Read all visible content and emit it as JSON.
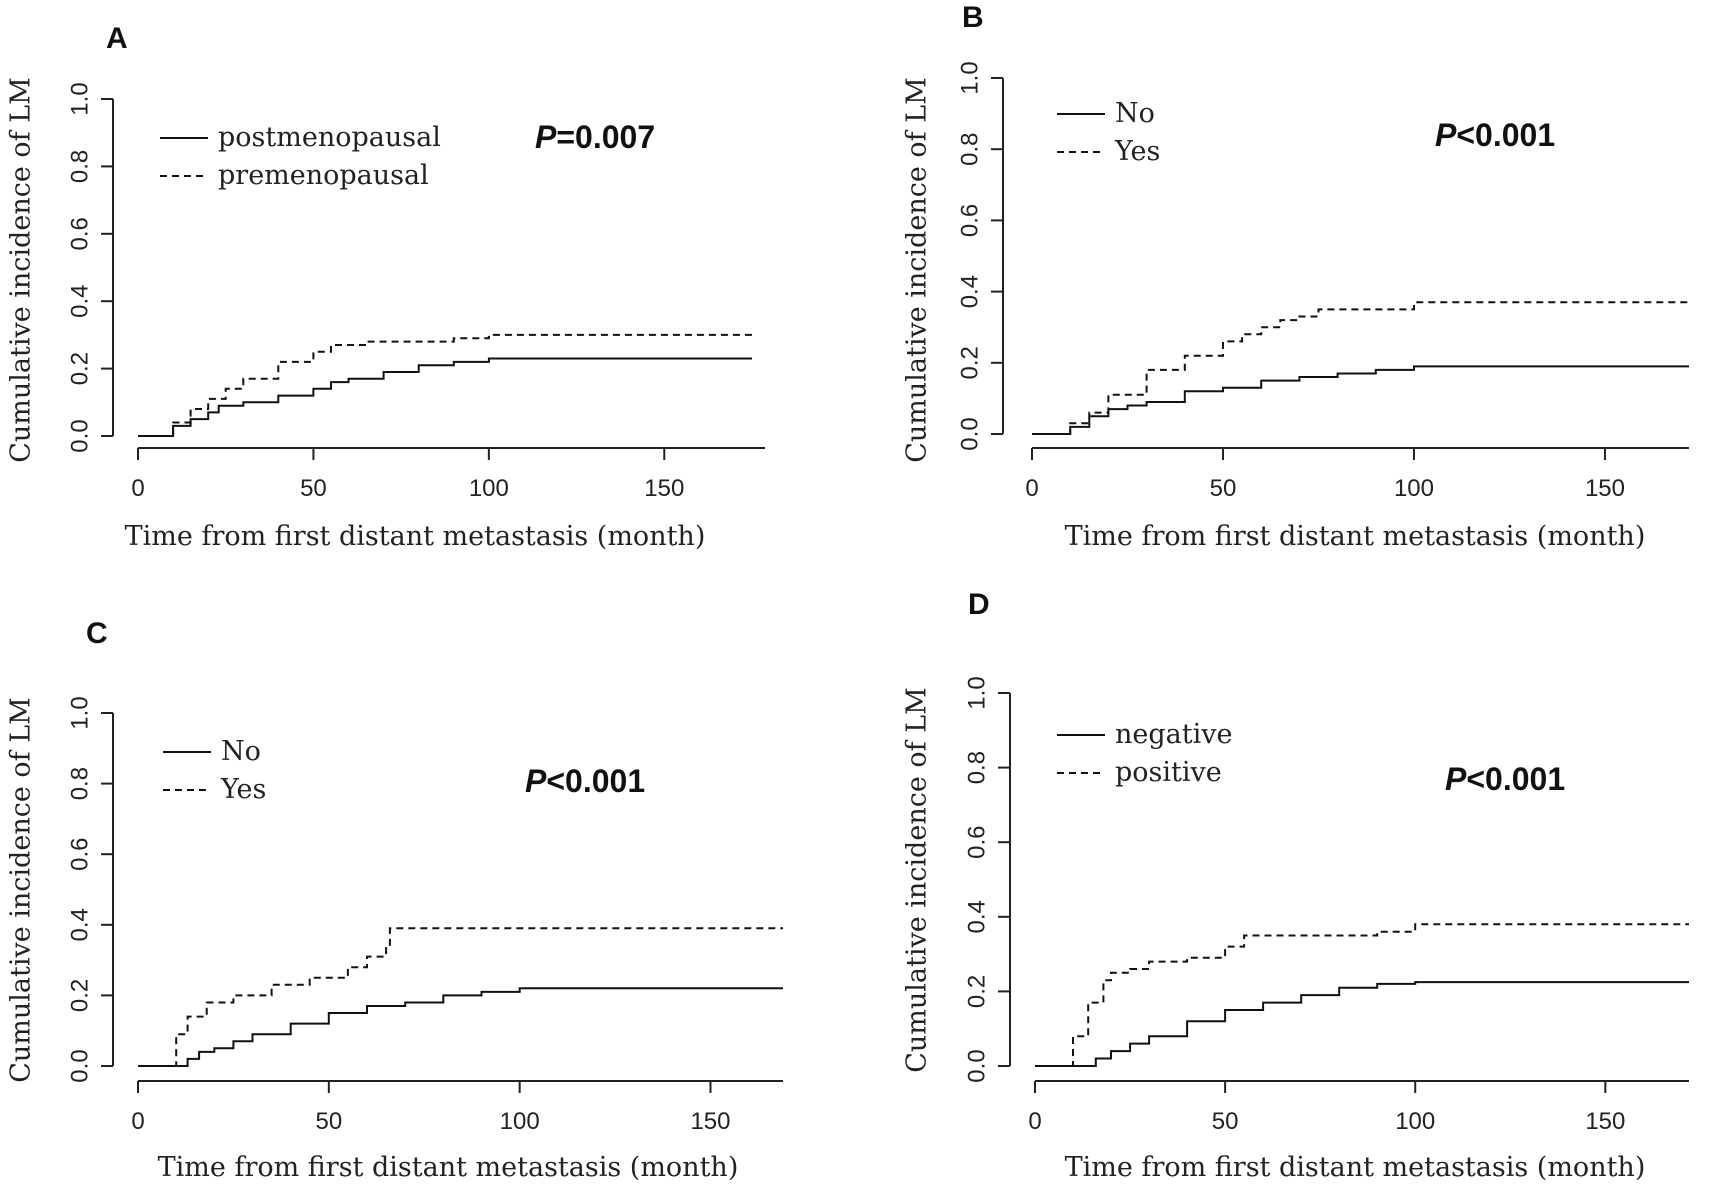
{
  "chart_data": [
    {
      "type": "line",
      "panel_label": "A",
      "xlabel": "Time from first distant metastasis (month)",
      "ylabel": "Cumulative incidence of LM",
      "xticks": [
        "0",
        "50",
        "100",
        "150"
      ],
      "yticks": [
        "0.0",
        "0.2",
        "0.4",
        "0.6",
        "0.8",
        "1.0"
      ],
      "xlim": [
        0,
        175
      ],
      "ylim": [
        0,
        1
      ],
      "legend_position": "top-left",
      "p_label": "P",
      "p_value": "=0.007",
      "series": [
        {
          "name": "postmenopausal",
          "style": "solid",
          "x": [
            0,
            6,
            10,
            15,
            20,
            23,
            30,
            40,
            50,
            55,
            60,
            70,
            80,
            90,
            100,
            175
          ],
          "y": [
            0,
            0,
            0.03,
            0.05,
            0.07,
            0.09,
            0.1,
            0.12,
            0.14,
            0.16,
            0.17,
            0.19,
            0.21,
            0.22,
            0.23,
            0.23
          ]
        },
        {
          "name": "premenopausal",
          "style": "dashed",
          "x": [
            0,
            6,
            10,
            15,
            20,
            25,
            30,
            40,
            50,
            55,
            65,
            80,
            90,
            100,
            175
          ],
          "y": [
            0,
            0,
            0.04,
            0.08,
            0.11,
            0.14,
            0.17,
            0.22,
            0.25,
            0.27,
            0.28,
            0.28,
            0.29,
            0.3,
            0.3
          ]
        }
      ]
    },
    {
      "type": "line",
      "panel_label": "B",
      "xlabel": "Time from first distant metastasis (month)",
      "ylabel": "Cumulative incidence of LM",
      "xticks": [
        "0",
        "50",
        "100",
        "150"
      ],
      "yticks": [
        "0.0",
        "0.2",
        "0.4",
        "0.6",
        "0.8",
        "1.0"
      ],
      "xlim": [
        0,
        172
      ],
      "ylim": [
        0,
        1
      ],
      "legend_position": "top-left",
      "p_label": "P",
      "p_value": "<0.001",
      "series": [
        {
          "name": "No",
          "style": "solid",
          "x": [
            0,
            6,
            10,
            15,
            20,
            25,
            30,
            40,
            50,
            60,
            70,
            80,
            90,
            100,
            172
          ],
          "y": [
            0,
            0,
            0.02,
            0.05,
            0.07,
            0.08,
            0.09,
            0.12,
            0.13,
            0.15,
            0.16,
            0.17,
            0.18,
            0.19,
            0.19
          ]
        },
        {
          "name": "Yes",
          "style": "dashed",
          "x": [
            0,
            6,
            10,
            15,
            20,
            30,
            40,
            50,
            55,
            60,
            65,
            70,
            75,
            95,
            100,
            172
          ],
          "y": [
            0,
            0,
            0.03,
            0.06,
            0.11,
            0.18,
            0.22,
            0.26,
            0.28,
            0.3,
            0.32,
            0.33,
            0.35,
            0.35,
            0.37,
            0.37
          ]
        }
      ]
    },
    {
      "type": "line",
      "panel_label": "C",
      "xlabel": "Time from first distant metastasis (month)",
      "ylabel": "Cumulative incidence of LM",
      "xticks": [
        "0",
        "50",
        "100",
        "150"
      ],
      "yticks": [
        "0.0",
        "0.2",
        "0.4",
        "0.6",
        "0.8",
        "1.0"
      ],
      "xlim": [
        0,
        169
      ],
      "ylim": [
        0,
        1
      ],
      "legend_position": "top-left",
      "p_label": "P",
      "p_value": "<0.001",
      "series": [
        {
          "name": "No",
          "style": "solid",
          "x": [
            0,
            10,
            13,
            16,
            20,
            25,
            30,
            40,
            50,
            60,
            70,
            80,
            90,
            100,
            169
          ],
          "y": [
            0,
            0,
            0.02,
            0.04,
            0.05,
            0.07,
            0.09,
            0.12,
            0.15,
            0.17,
            0.18,
            0.2,
            0.21,
            0.22,
            0.22
          ]
        },
        {
          "name": "Yes",
          "style": "dashed",
          "x": [
            0,
            6,
            10,
            13,
            18,
            25,
            35,
            45,
            55,
            60,
            65,
            66,
            100,
            169
          ],
          "y": [
            0,
            0,
            0.09,
            0.14,
            0.18,
            0.2,
            0.23,
            0.25,
            0.28,
            0.31,
            0.34,
            0.39,
            0.39,
            0.39
          ]
        }
      ]
    },
    {
      "type": "line",
      "panel_label": "D",
      "xlabel": "Time from first distant metastasis (month)",
      "ylabel": "Cumulative incidence of LM",
      "xticks": [
        "0",
        "50",
        "100",
        "150"
      ],
      "yticks": [
        "0.0",
        "0.2",
        "0.4",
        "0.6",
        "0.8",
        "1.0"
      ],
      "xlim": [
        0,
        172
      ],
      "ylim": [
        0,
        1
      ],
      "legend_position": "top-left",
      "p_label": "P",
      "p_value": "<0.001",
      "series": [
        {
          "name": "negative",
          "style": "solid",
          "x": [
            0,
            12,
            16,
            20,
            25,
            30,
            40,
            50,
            60,
            70,
            80,
            90,
            100,
            172
          ],
          "y": [
            0,
            0,
            0.02,
            0.04,
            0.06,
            0.08,
            0.12,
            0.15,
            0.17,
            0.19,
            0.21,
            0.22,
            0.225,
            0.225
          ]
        },
        {
          "name": "positive",
          "style": "dashed",
          "x": [
            0,
            6,
            10,
            14,
            18,
            20,
            25,
            30,
            40,
            50,
            55,
            75,
            90,
            100,
            172
          ],
          "y": [
            0,
            0,
            0.08,
            0.17,
            0.23,
            0.25,
            0.26,
            0.28,
            0.29,
            0.32,
            0.35,
            0.35,
            0.36,
            0.38,
            0.38
          ]
        }
      ]
    }
  ]
}
